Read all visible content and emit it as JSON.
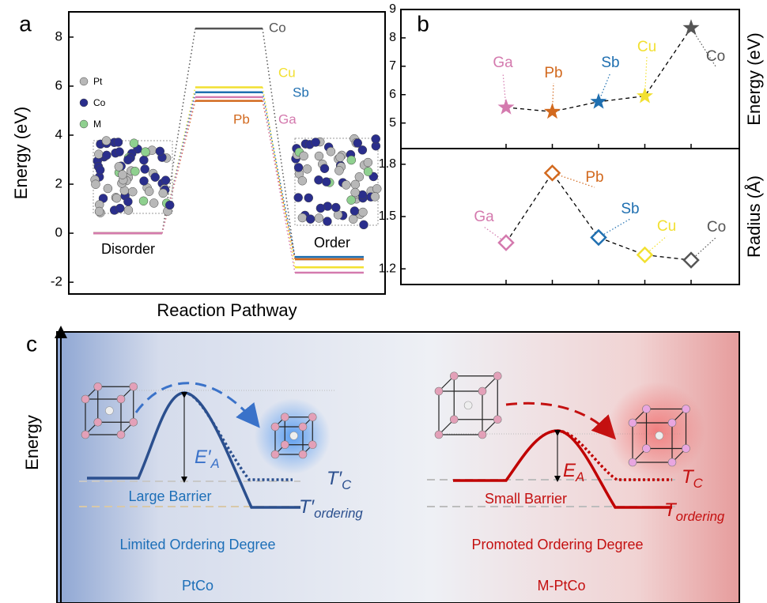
{
  "chart_data": [
    {
      "type": "levels",
      "panel_label": "a",
      "xlabel": "Reaction Pathway",
      "ylabel": "Energy (eV)",
      "stages": [
        "Disorder",
        null,
        "Order"
      ],
      "ylim": [
        -2.48,
        9.03
      ],
      "yticks": [
        -2,
        0,
        2,
        4,
        6,
        8
      ],
      "atom_legend": [
        "Pt",
        "Co",
        "M"
      ],
      "series": [
        {
          "name": "Co",
          "color": "#555555",
          "values": [
            0,
            8.35,
            -1.06
          ]
        },
        {
          "name": "Cu",
          "color": "#f2e031",
          "values": [
            0,
            5.95,
            -1.39
          ]
        },
        {
          "name": "Sb",
          "color": "#1f6fb0",
          "values": [
            0,
            5.75,
            -0.97
          ]
        },
        {
          "name": "Pb",
          "color": "#d2691e",
          "values": [
            0,
            5.4,
            -1.06
          ]
        },
        {
          "name": "Ga",
          "color": "#d47aae",
          "values": [
            0,
            5.55,
            -1.61
          ]
        }
      ]
    },
    {
      "type": "scatter-line",
      "panel_label": "b",
      "ylabel": "Energy (eV)",
      "marker": "star",
      "categories": [
        "Ga",
        "Pb",
        "Sb",
        "Cu",
        "Co"
      ],
      "colors": [
        "#d47aae",
        "#d2691e",
        "#1f6fb0",
        "#f2e031",
        "#555555"
      ],
      "values": [
        5.55,
        5.4,
        5.75,
        5.95,
        8.35
      ],
      "ylim": [
        4.1,
        9
      ],
      "yticks": [
        5,
        6,
        7,
        8,
        9
      ]
    },
    {
      "type": "scatter-line",
      "ylabel": "Radius (Å)",
      "marker": "diamond",
      "categories": [
        "Ga",
        "Pb",
        "Sb",
        "Cu",
        "Co"
      ],
      "colors": [
        "#d47aae",
        "#d2691e",
        "#1f6fb0",
        "#f2e031",
        "#555555"
      ],
      "values": [
        1.35,
        1.75,
        1.38,
        1.28,
        1.25
      ],
      "ylim": [
        1.11,
        1.89
      ],
      "yticks": [
        1.2,
        1.5,
        1.8
      ]
    }
  ],
  "panel_c": {
    "label": "c",
    "ylabel": "Energy",
    "left": {
      "ea": {
        "main": "E′",
        "sub": "A"
      },
      "tc": {
        "main": "T′",
        "sub": "C"
      },
      "tord": {
        "main": "T′",
        "sub": "ordering"
      },
      "barrier": "Large Barrier",
      "degree": "Limited Ordering Degree",
      "name": "PtCo"
    },
    "right": {
      "ea": {
        "main": "E",
        "sub": "A"
      },
      "tc": {
        "main": "T",
        "sub": "C"
      },
      "tord": {
        "main": "T",
        "sub": "ordering"
      },
      "barrier": "Small Barrier",
      "degree": "Promoted Ordering Degree",
      "name": "M-PtCo"
    }
  }
}
